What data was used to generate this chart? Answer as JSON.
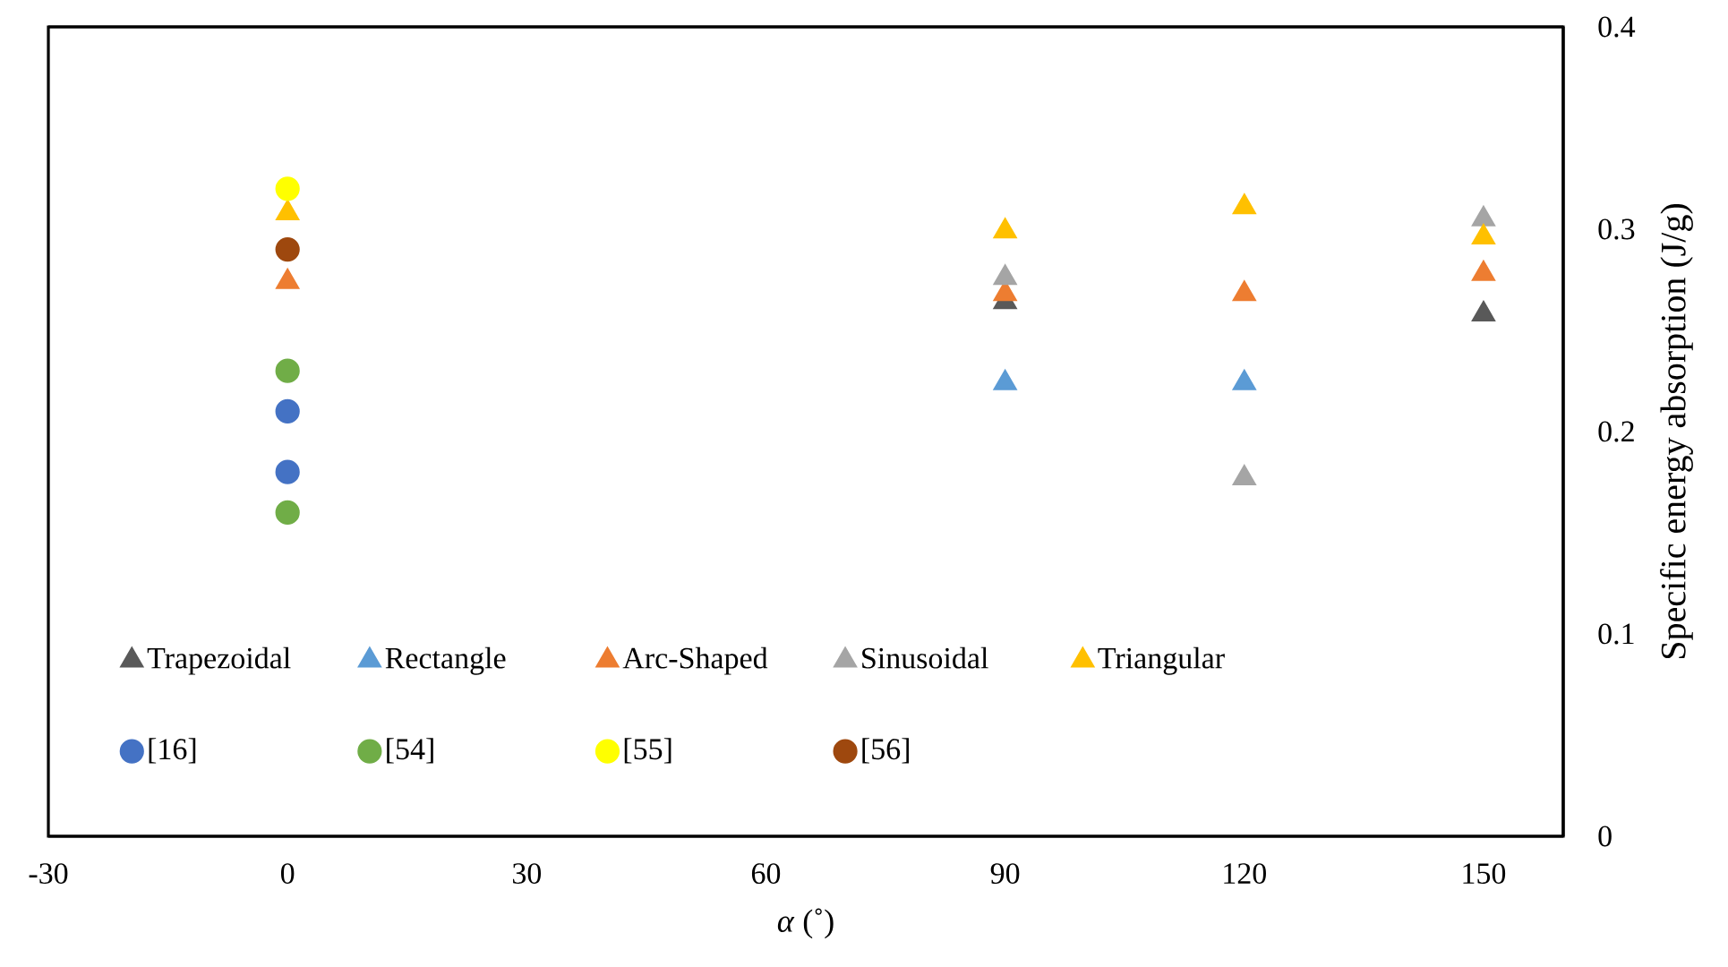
{
  "chart_data": {
    "type": "scatter",
    "xlabel": "*α* (˚)",
    "ylabel": "Specific energy absorption (J/g)",
    "xlim": [
      -30,
      160
    ],
    "xticks": [
      -30,
      0,
      30,
      60,
      90,
      120,
      150
    ],
    "ylim": [
      0,
      0.4
    ],
    "yticks": [
      0,
      0.1,
      0.2,
      0.3,
      0.4
    ],
    "grid": false,
    "legend": "bottom",
    "series": [
      {
        "name": "Trapezoidal",
        "color": "#595959",
        "marker": "triangle",
        "x": [
          90,
          150
        ],
        "values": [
          0.264,
          0.258
        ]
      },
      {
        "name": "Rectangle",
        "color": "#5b9bd5",
        "marker": "triangle",
        "x": [
          90,
          120
        ],
        "values": [
          0.224,
          0.224
        ]
      },
      {
        "name": "Arc-Shaped",
        "color": "#ed7d31",
        "marker": "triangle",
        "x": [
          0,
          90,
          120,
          150
        ],
        "values": [
          0.274,
          0.268,
          0.268,
          0.278
        ]
      },
      {
        "name": "Sinusoidal",
        "color": "#a5a5a5",
        "marker": "triangle",
        "x": [
          90,
          120,
          150
        ],
        "values": [
          0.276,
          0.177,
          0.305
        ]
      },
      {
        "name": "Triangular",
        "color": "#ffc000",
        "marker": "triangle",
        "x": [
          0,
          90,
          120,
          150
        ],
        "values": [
          0.308,
          0.299,
          0.311,
          0.296
        ]
      },
      {
        "name": "[16]",
        "color": "#4472c4",
        "marker": "circle",
        "x": [
          0,
          0
        ],
        "values": [
          0.21,
          0.18
        ]
      },
      {
        "name": "[54]",
        "color": "#70ad47",
        "marker": "circle",
        "x": [
          0,
          0
        ],
        "values": [
          0.23,
          0.16
        ]
      },
      {
        "name": "[55]",
        "color": "#ffff00",
        "marker": "circle",
        "x": [
          0
        ],
        "values": [
          0.32
        ]
      },
      {
        "name": "[56]",
        "color": "#9e480e",
        "marker": "circle",
        "x": [
          0
        ],
        "values": [
          0.29
        ]
      }
    ]
  }
}
